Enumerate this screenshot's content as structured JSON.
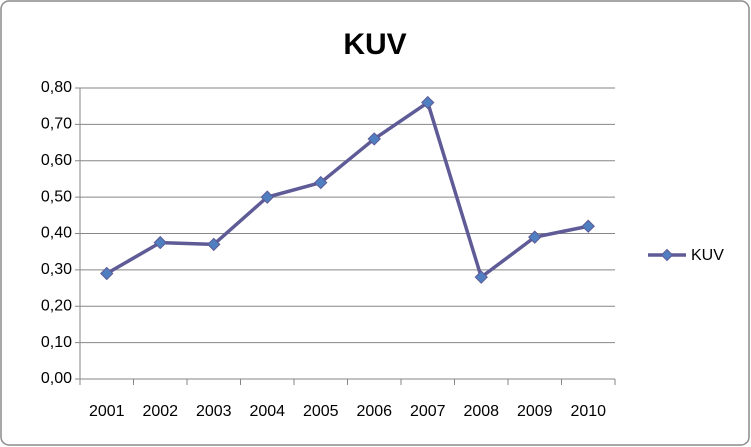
{
  "chart_data": {
    "type": "line",
    "title": "KUV",
    "categories": [
      "2001",
      "2002",
      "2003",
      "2004",
      "2005",
      "2006",
      "2007",
      "2008",
      "2009",
      "2010"
    ],
    "series": [
      {
        "name": "KUV",
        "color": "#5e5b96",
        "marker_color": "#4f7fc0",
        "values": [
          0.29,
          0.375,
          0.37,
          0.5,
          0.54,
          0.66,
          0.76,
          0.28,
          0.39,
          0.42
        ]
      }
    ],
    "ylim": [
      0,
      0.8
    ],
    "yticks": [
      {
        "value": 0,
        "label": "0,00"
      },
      {
        "value": 0.1,
        "label": "0,10"
      },
      {
        "value": 0.2,
        "label": "0,20"
      },
      {
        "value": 0.3,
        "label": "0,30"
      },
      {
        "value": 0.4,
        "label": "0,40"
      },
      {
        "value": 0.5,
        "label": "0,50"
      },
      {
        "value": 0.6,
        "label": "0,60"
      },
      {
        "value": 0.7,
        "label": "0,70"
      },
      {
        "value": 0.8,
        "label": "0,80"
      }
    ],
    "grid": true,
    "legend": "right"
  }
}
